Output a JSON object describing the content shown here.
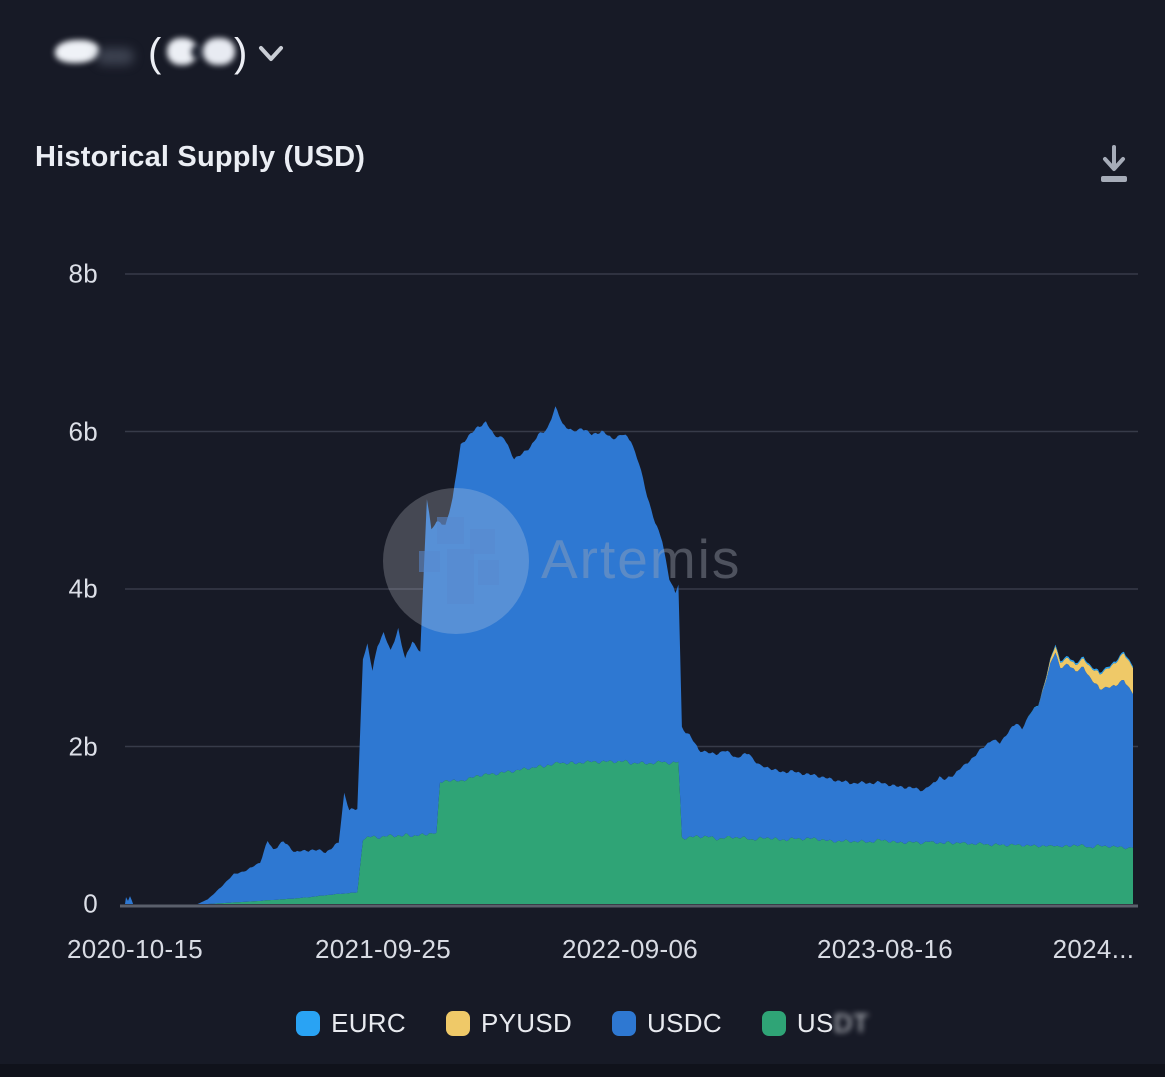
{
  "header": {
    "selector": {
      "redacted": true,
      "open_paren": "(",
      "close_paren": ")"
    }
  },
  "card": {
    "title": "Historical Supply (USD)"
  },
  "watermark": {
    "text": "Artemis"
  },
  "legend": {
    "items": [
      {
        "label": "EURC",
        "color": "#29A3F4"
      },
      {
        "label": "PYUSD",
        "color": "#EFC968"
      },
      {
        "label": "USDC",
        "color": "#2E78D2"
      },
      {
        "label": "USDT",
        "color": "#2FA476",
        "label_visible": "US",
        "label_blurred": "DT"
      }
    ]
  },
  "chart_data": {
    "type": "area",
    "stacked": true,
    "title": "Historical Supply (USD)",
    "unit": "USD billions",
    "grid": "horizontal",
    "legend_position": "bottom",
    "ylim": [
      0,
      8.4
    ],
    "y_ticks": [
      "8b",
      "6b",
      "4b",
      "2b",
      "0"
    ],
    "y_tick_values": [
      8,
      6,
      4,
      2,
      0
    ],
    "x_ticks": [
      {
        "label": "2020-10-15",
        "f": 0.01
      },
      {
        "label": "2021-09-25",
        "f": 0.256
      },
      {
        "label": "2022-09-06",
        "f": 0.501
      },
      {
        "label": "2023-08-16",
        "f": 0.754
      },
      {
        "label": "2024...",
        "f": 0.967
      }
    ],
    "stack_order_bottom_to_top": [
      "USDT",
      "USDC",
      "PYUSD",
      "EURC"
    ],
    "x": [
      0.0,
      0.001,
      0.003,
      0.005,
      0.008,
      0.072,
      0.082,
      0.095,
      0.108,
      0.122,
      0.134,
      0.1415,
      0.147,
      0.157,
      0.169,
      0.184,
      0.199,
      0.212,
      0.2175,
      0.2225,
      0.2305,
      0.236,
      0.2405,
      0.2455,
      0.2505,
      0.2565,
      0.2635,
      0.271,
      0.278,
      0.285,
      0.293,
      0.2995,
      0.304,
      0.309,
      0.3125,
      0.318,
      0.325,
      0.333,
      0.341,
      0.35,
      0.358,
      0.366,
      0.376,
      0.386,
      0.394,
      0.402,
      0.41,
      0.419,
      0.427,
      0.434,
      0.444,
      0.453,
      0.463,
      0.473,
      0.483,
      0.493,
      0.502,
      0.51,
      0.518,
      0.526,
      0.533,
      0.54,
      0.546,
      0.549,
      0.5525,
      0.56,
      0.569,
      0.581,
      0.594,
      0.607,
      0.619,
      0.63,
      0.645,
      0.66,
      0.68,
      0.699,
      0.719,
      0.739,
      0.754,
      0.769,
      0.781,
      0.793,
      0.8,
      0.808,
      0.815,
      0.823,
      0.832,
      0.842,
      0.852,
      0.86,
      0.868,
      0.876,
      0.884,
      0.89,
      0.898,
      0.906,
      0.912,
      0.918,
      0.923,
      0.928,
      0.936,
      0.943,
      0.951,
      0.96,
      0.967,
      0.975,
      0.983,
      0.991,
      1.0
    ],
    "series": [
      {
        "name": "USDT",
        "color": "#2FA476",
        "values": [
          0,
          0,
          0,
          0,
          0,
          0,
          0,
          0.01,
          0.02,
          0.03,
          0.04,
          0.05,
          0.05,
          0.06,
          0.07,
          0.09,
          0.11,
          0.13,
          0.13,
          0.14,
          0.15,
          0.83,
          0.85,
          0.85,
          0.86,
          0.86,
          0.86,
          0.87,
          0.87,
          0.87,
          0.88,
          0.88,
          0.89,
          0.9,
          1.55,
          1.56,
          1.57,
          1.58,
          1.6,
          1.62,
          1.63,
          1.64,
          1.66,
          1.68,
          1.7,
          1.72,
          1.74,
          1.77,
          1.78,
          1.79,
          1.79,
          1.8,
          1.8,
          1.8,
          1.8,
          1.8,
          1.8,
          1.8,
          1.8,
          1.8,
          1.8,
          1.8,
          1.8,
          1.8,
          0.85,
          0.85,
          0.85,
          0.84,
          0.84,
          0.84,
          0.83,
          0.83,
          0.83,
          0.82,
          0.82,
          0.81,
          0.81,
          0.8,
          0.8,
          0.79,
          0.79,
          0.78,
          0.78,
          0.78,
          0.78,
          0.77,
          0.77,
          0.77,
          0.77,
          0.76,
          0.76,
          0.76,
          0.76,
          0.76,
          0.75,
          0.75,
          0.75,
          0.74,
          0.74,
          0.74,
          0.74,
          0.74,
          0.73,
          0.73,
          0.73,
          0.73,
          0.72,
          0.72,
          0.72
        ]
      },
      {
        "name": "USDC",
        "color": "#2E78D2",
        "values": [
          0,
          0.09,
          0.04,
          0.1,
          0,
          0,
          0.06,
          0.2,
          0.36,
          0.41,
          0.5,
          0.75,
          0.63,
          0.72,
          0.58,
          0.61,
          0.54,
          0.66,
          1.27,
          1.06,
          1.07,
          2.3,
          2.45,
          2.1,
          2.44,
          2.59,
          2.34,
          2.63,
          2.23,
          2.48,
          2.32,
          4.27,
          3.86,
          3.95,
          3.3,
          3.24,
          3.58,
          4.27,
          4.35,
          4.43,
          4.47,
          4.31,
          4.24,
          3.97,
          4.0,
          4.08,
          4.21,
          4.28,
          4.52,
          4.31,
          4.21,
          4.25,
          4.15,
          4.2,
          4.1,
          4.15,
          4.1,
          3.8,
          3.4,
          3.05,
          2.8,
          2.35,
          2.15,
          2.25,
          1.4,
          1.3,
          1.1,
          1.06,
          1.11,
          1.01,
          1.09,
          0.92,
          0.87,
          0.86,
          0.81,
          0.79,
          0.74,
          0.75,
          0.72,
          0.71,
          0.69,
          0.67,
          0.72,
          0.84,
          0.8,
          0.88,
          0.98,
          1.11,
          1.23,
          1.34,
          1.29,
          1.44,
          1.54,
          1.49,
          1.67,
          1.79,
          2.03,
          2.31,
          2.46,
          2.27,
          2.31,
          2.21,
          2.26,
          2.12,
          1.98,
          2.03,
          2.04,
          2.14,
          1.95
        ]
      },
      {
        "name": "PYUSD",
        "color": "#EFC968",
        "values": [
          0,
          0,
          0,
          0,
          0,
          0,
          0,
          0,
          0,
          0,
          0,
          0,
          0,
          0,
          0,
          0,
          0,
          0,
          0,
          0,
          0,
          0,
          0,
          0,
          0,
          0,
          0,
          0,
          0,
          0,
          0,
          0,
          0,
          0,
          0,
          0,
          0,
          0,
          0,
          0,
          0,
          0,
          0,
          0,
          0,
          0,
          0,
          0,
          0,
          0,
          0,
          0,
          0,
          0,
          0,
          0,
          0,
          0,
          0,
          0,
          0,
          0,
          0,
          0,
          0,
          0,
          0,
          0,
          0,
          0,
          0,
          0,
          0,
          0,
          0,
          0,
          0,
          0,
          0,
          0,
          0,
          0,
          0,
          0,
          0,
          0,
          0,
          0,
          0,
          0,
          0,
          0,
          0,
          0,
          0,
          0,
          0.02,
          0.05,
          0.08,
          0.07,
          0.08,
          0.08,
          0.11,
          0.15,
          0.19,
          0.24,
          0.29,
          0.34,
          0.33
        ]
      },
      {
        "name": "EURC",
        "color": "#29A3F4",
        "values": [
          0,
          0,
          0,
          0,
          0,
          0,
          0,
          0,
          0,
          0,
          0,
          0,
          0,
          0,
          0,
          0,
          0,
          0,
          0,
          0,
          0,
          0,
          0,
          0,
          0,
          0,
          0,
          0,
          0,
          0,
          0,
          0,
          0,
          0,
          0,
          0,
          0,
          0,
          0,
          0,
          0,
          0,
          0,
          0,
          0,
          0,
          0,
          0,
          0,
          0,
          0,
          0,
          0,
          0,
          0,
          0,
          0,
          0,
          0,
          0,
          0,
          0,
          0,
          0,
          0,
          0,
          0,
          0,
          0,
          0,
          0,
          0,
          0,
          0,
          0,
          0,
          0,
          0,
          0,
          0,
          0,
          0,
          0,
          0,
          0,
          0,
          0,
          0,
          0,
          0,
          0,
          0,
          0,
          0,
          0.01,
          0.01,
          0.01,
          0.01,
          0.02,
          0.02,
          0.02,
          0.02,
          0.02,
          0.02,
          0.02,
          0.02,
          0.02,
          0.02,
          0.02
        ]
      }
    ]
  }
}
